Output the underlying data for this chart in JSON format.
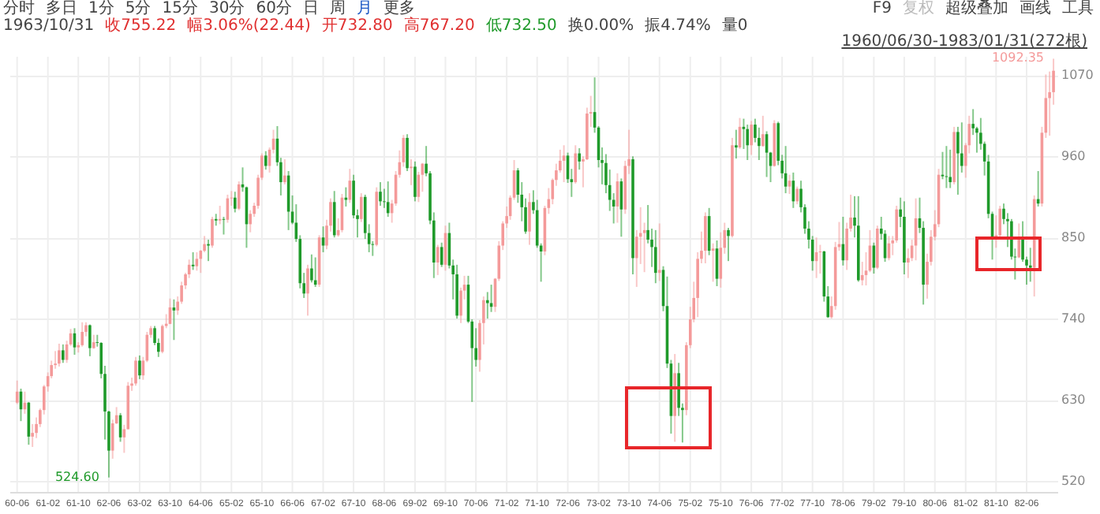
{
  "chart_data": {
    "type": "candlestick",
    "annotations": [
      "分时",
      "多日",
      "1分",
      "5分",
      "15分",
      "30分",
      "60分",
      "日",
      "周",
      "月",
      "更多",
      "F9",
      "复权",
      "超级叠加",
      "画线",
      "工具",
      "1963/10/31",
      "收755.22",
      "幅3.06%(22.44)",
      "开732.80",
      "高767.20",
      "低732.50",
      "换0.00%",
      "振4.74%",
      "量0",
      "1960/06/30-1983/01/31(272根)",
      {
        "text": "524.60",
        "x": "1962-06",
        "y": 524.6
      },
      {
        "text": "1092.35",
        "x": "1983-01",
        "y": 1092.35
      }
    ],
    "x": [
      "1960-06",
      "1960-07",
      "1960-08",
      "1960-09",
      "1960-10",
      "1960-11",
      "1960-12",
      "1961-01",
      "1961-02",
      "1961-03",
      "1961-04",
      "1961-05",
      "1961-06",
      "1961-07",
      "1961-08",
      "1961-09",
      "1961-10",
      "1961-11",
      "1961-12",
      "1962-01",
      "1962-02",
      "1962-03",
      "1962-04",
      "1962-05",
      "1962-06",
      "1962-07",
      "1962-08",
      "1962-09",
      "1962-10",
      "1962-11",
      "1962-12",
      "1963-01",
      "1963-02",
      "1963-03",
      "1963-04",
      "1963-05",
      "1963-06",
      "1963-07",
      "1963-08",
      "1963-09",
      "1963-10",
      "1963-11",
      "1963-12",
      "1964-01",
      "1964-02",
      "1964-03",
      "1964-04",
      "1964-05",
      "1964-06",
      "1964-07",
      "1964-08",
      "1964-09",
      "1964-10",
      "1964-11",
      "1964-12",
      "1965-01",
      "1965-02",
      "1965-03",
      "1965-04",
      "1965-05",
      "1965-06",
      "1965-07",
      "1965-08",
      "1965-09",
      "1965-10",
      "1965-11",
      "1965-12",
      "1966-01",
      "1966-02",
      "1966-03",
      "1966-04",
      "1966-05",
      "1966-06",
      "1966-07",
      "1966-08",
      "1966-09",
      "1966-10",
      "1966-11",
      "1966-12",
      "1967-01",
      "1967-02",
      "1967-03",
      "1967-04",
      "1967-05",
      "1967-06",
      "1967-07",
      "1967-08",
      "1967-09",
      "1967-10",
      "1967-11",
      "1967-12",
      "1968-01",
      "1968-02",
      "1968-03",
      "1968-04",
      "1968-05",
      "1968-06",
      "1968-07",
      "1968-08",
      "1968-09",
      "1968-10",
      "1968-11",
      "1968-12",
      "1969-01",
      "1969-02",
      "1969-03",
      "1969-04",
      "1969-05",
      "1969-06",
      "1969-07",
      "1969-08",
      "1969-09",
      "1969-10",
      "1969-11",
      "1969-12",
      "1970-01",
      "1970-02",
      "1970-03",
      "1970-04",
      "1970-05",
      "1970-06",
      "1970-07",
      "1970-08",
      "1970-09",
      "1970-10",
      "1970-11",
      "1970-12",
      "1971-01",
      "1971-02",
      "1971-03",
      "1971-04",
      "1971-05",
      "1971-06",
      "1971-07",
      "1971-08",
      "1971-09",
      "1971-10",
      "1971-11",
      "1971-12",
      "1972-01",
      "1972-02",
      "1972-03",
      "1972-04",
      "1972-05",
      "1972-06",
      "1972-07",
      "1972-08",
      "1972-09",
      "1972-10",
      "1972-11",
      "1972-12",
      "1973-01",
      "1973-02",
      "1973-03",
      "1973-04",
      "1973-05",
      "1973-06",
      "1973-07",
      "1973-08",
      "1973-09",
      "1973-10",
      "1973-11",
      "1973-12",
      "1974-01",
      "1974-02",
      "1974-03",
      "1974-04",
      "1974-05",
      "1974-06",
      "1974-07",
      "1974-08",
      "1974-09",
      "1974-10",
      "1974-11",
      "1974-12",
      "1975-01",
      "1975-02",
      "1975-03",
      "1975-04",
      "1975-05",
      "1975-06",
      "1975-07",
      "1975-08",
      "1975-09",
      "1975-10",
      "1975-11",
      "1975-12",
      "1976-01",
      "1976-02",
      "1976-03",
      "1976-04",
      "1976-05",
      "1976-06",
      "1976-07",
      "1976-08",
      "1976-09",
      "1976-10",
      "1976-11",
      "1976-12",
      "1977-01",
      "1977-02",
      "1977-03",
      "1977-04",
      "1977-05",
      "1977-06",
      "1977-07",
      "1977-08",
      "1977-09",
      "1977-10",
      "1977-11",
      "1977-12",
      "1978-01",
      "1978-02",
      "1978-03",
      "1978-04",
      "1978-05",
      "1978-06",
      "1978-07",
      "1978-08",
      "1978-09",
      "1978-10",
      "1978-11",
      "1978-12",
      "1979-01",
      "1979-02",
      "1979-03",
      "1979-04",
      "1979-05",
      "1979-06",
      "1979-07",
      "1979-08",
      "1979-09",
      "1979-10",
      "1979-11",
      "1979-12",
      "1980-01",
      "1980-02",
      "1980-03",
      "1980-04",
      "1980-05",
      "1980-06",
      "1980-07",
      "1980-08",
      "1980-09",
      "1980-10",
      "1980-11",
      "1980-12",
      "1981-01",
      "1981-02",
      "1981-03",
      "1981-04",
      "1981-05",
      "1981-06",
      "1981-07",
      "1981-08",
      "1981-09",
      "1981-10",
      "1981-11",
      "1981-12",
      "1982-01",
      "1982-02",
      "1982-03",
      "1982-04",
      "1982-05",
      "1982-06",
      "1982-07",
      "1982-08",
      "1982-09",
      "1982-10",
      "1982-11",
      "1982-12",
      "1983-01"
    ],
    "ohlc": [
      [
        626,
        656,
        624,
        641
      ],
      [
        641,
        645,
        601,
        617
      ],
      [
        617,
        641,
        611,
        626
      ],
      [
        626,
        627,
        569,
        580
      ],
      [
        580,
        597,
        566,
        585
      ],
      [
        585,
        606,
        578,
        597
      ],
      [
        597,
        618,
        593,
        616
      ],
      [
        616,
        650,
        610,
        648
      ],
      [
        648,
        667,
        641,
        662
      ],
      [
        662,
        683,
        659,
        677
      ],
      [
        677,
        696,
        672,
        679
      ],
      [
        679,
        706,
        675,
        697
      ],
      [
        697,
        705,
        680,
        684
      ],
      [
        684,
        710,
        680,
        705
      ],
      [
        705,
        726,
        703,
        720
      ],
      [
        720,
        727,
        691,
        701
      ],
      [
        701,
        708,
        694,
        704
      ],
      [
        704,
        735,
        702,
        722
      ],
      [
        722,
        735,
        716,
        731
      ],
      [
        731,
        732,
        689,
        700
      ],
      [
        700,
        718,
        699,
        708
      ],
      [
        708,
        718,
        702,
        707
      ],
      [
        707,
        708,
        659,
        665
      ],
      [
        665,
        676,
        576,
        614
      ],
      [
        614,
        615,
        524.6,
        561
      ],
      [
        561,
        603,
        550,
        598
      ],
      [
        598,
        620,
        597,
        609
      ],
      [
        609,
        612,
        573,
        579
      ],
      [
        579,
        596,
        558,
        590
      ],
      [
        590,
        654,
        590,
        649
      ],
      [
        649,
        660,
        642,
        652
      ],
      [
        652,
        688,
        649,
        683
      ],
      [
        683,
        690,
        658,
        663
      ],
      [
        663,
        688,
        657,
        683
      ],
      [
        683,
        722,
        681,
        718
      ],
      [
        718,
        730,
        714,
        727
      ],
      [
        727,
        730,
        704,
        707
      ],
      [
        707,
        713,
        688,
        695
      ],
      [
        695,
        732,
        693,
        730
      ],
      [
        730,
        746,
        727,
        733
      ],
      [
        732.8,
        767.2,
        732.5,
        755.22
      ],
      [
        755,
        766,
        711,
        751
      ],
      [
        751,
        770,
        745,
        763
      ],
      [
        763,
        790,
        760,
        785
      ],
      [
        785,
        802,
        780,
        800
      ],
      [
        800,
        820,
        795,
        813
      ],
      [
        813,
        830,
        806,
        811
      ],
      [
        811,
        830,
        805,
        821
      ],
      [
        821,
        833,
        802,
        832
      ],
      [
        832,
        852,
        830,
        841
      ],
      [
        841,
        847,
        818,
        839
      ],
      [
        839,
        878,
        836,
        875
      ],
      [
        875,
        882,
        866,
        873
      ],
      [
        873,
        893,
        868,
        875
      ],
      [
        875,
        878,
        854,
        874
      ],
      [
        874,
        908,
        870,
        903
      ],
      [
        903,
        913,
        893,
        904
      ],
      [
        904,
        912,
        884,
        889
      ],
      [
        889,
        926,
        887,
        922
      ],
      [
        922,
        945,
        912,
        918
      ],
      [
        918,
        919,
        836,
        868
      ],
      [
        868,
        887,
        857,
        882
      ],
      [
        882,
        897,
        878,
        893
      ],
      [
        893,
        935,
        889,
        931
      ],
      [
        931,
        964,
        928,
        961
      ],
      [
        961,
        967,
        942,
        947
      ],
      [
        947,
        972,
        938,
        969
      ],
      [
        969,
        996,
        964,
        984
      ],
      [
        984,
        1001,
        947,
        952
      ],
      [
        952,
        958,
        907,
        925
      ],
      [
        925,
        956,
        922,
        934
      ],
      [
        934,
        940,
        860,
        885
      ],
      [
        885,
        907,
        868,
        870
      ],
      [
        870,
        895,
        844,
        848
      ],
      [
        848,
        853,
        781,
        788
      ],
      [
        788,
        802,
        768,
        774
      ],
      [
        774,
        813,
        744,
        808
      ],
      [
        808,
        827,
        789,
        792
      ],
      [
        792,
        823,
        783,
        786
      ],
      [
        786,
        853,
        783,
        850
      ],
      [
        850,
        865,
        830,
        839
      ],
      [
        839,
        874,
        834,
        866
      ],
      [
        866,
        903,
        858,
        898
      ],
      [
        898,
        913,
        850,
        853
      ],
      [
        853,
        876,
        851,
        860
      ],
      [
        860,
        909,
        857,
        904
      ],
      [
        904,
        918,
        892,
        901
      ],
      [
        901,
        943,
        897,
        927
      ],
      [
        927,
        935,
        876,
        880
      ],
      [
        880,
        888,
        850,
        875
      ],
      [
        875,
        910,
        871,
        905
      ],
      [
        905,
        908,
        848,
        856
      ],
      [
        856,
        868,
        830,
        841
      ],
      [
        841,
        845,
        825,
        840
      ],
      [
        840,
        918,
        838,
        912
      ],
      [
        912,
        925,
        893,
        899
      ],
      [
        899,
        916,
        890,
        898
      ],
      [
        898,
        926,
        878,
        883
      ],
      [
        883,
        901,
        870,
        896
      ],
      [
        896,
        940,
        893,
        935
      ],
      [
        935,
        968,
        931,
        952
      ],
      [
        952,
        989,
        946,
        985
      ],
      [
        985,
        990,
        940,
        944
      ],
      [
        944,
        956,
        921,
        946
      ],
      [
        946,
        953,
        899,
        905
      ],
      [
        905,
        939,
        898,
        935
      ],
      [
        935,
        951,
        912,
        950
      ],
      [
        950,
        974,
        933,
        937
      ],
      [
        937,
        940,
        868,
        873
      ],
      [
        873,
        884,
        795,
        816
      ],
      [
        816,
        840,
        799,
        837
      ],
      [
        837,
        843,
        810,
        813
      ],
      [
        813,
        866,
        805,
        856
      ],
      [
        856,
        870,
        808,
        812
      ],
      [
        812,
        820,
        766,
        800
      ],
      [
        800,
        813,
        740,
        744
      ],
      [
        744,
        782,
        734,
        778
      ],
      [
        778,
        798,
        766,
        786
      ],
      [
        786,
        798,
        734,
        736
      ],
      [
        736,
        739,
        627,
        700
      ],
      [
        700,
        727,
        675,
        684
      ],
      [
        684,
        738,
        668,
        734
      ],
      [
        734,
        770,
        705,
        765
      ],
      [
        765,
        776,
        740,
        761
      ],
      [
        761,
        786,
        749,
        756
      ],
      [
        756,
        795,
        749,
        794
      ],
      [
        794,
        845,
        791,
        839
      ],
      [
        839,
        872,
        833,
        869
      ],
      [
        869,
        892,
        863,
        879
      ],
      [
        879,
        907,
        874,
        904
      ],
      [
        904,
        955,
        901,
        941
      ],
      [
        941,
        944,
        897,
        908
      ],
      [
        908,
        925,
        872,
        891
      ],
      [
        891,
        903,
        855,
        858
      ],
      [
        858,
        910,
        840,
        898
      ],
      [
        898,
        914,
        882,
        887
      ],
      [
        887,
        901,
        836,
        839
      ],
      [
        839,
        842,
        790,
        831
      ],
      [
        831,
        893,
        826,
        890
      ],
      [
        890,
        917,
        882,
        902
      ],
      [
        902,
        930,
        895,
        928
      ],
      [
        928,
        950,
        920,
        941
      ],
      [
        941,
        969,
        938,
        954
      ],
      [
        954,
        975,
        925,
        961
      ],
      [
        961,
        965,
        924,
        929
      ],
      [
        929,
        943,
        905,
        925
      ],
      [
        925,
        975,
        923,
        964
      ],
      [
        964,
        971,
        942,
        953
      ],
      [
        953,
        960,
        918,
        956
      ],
      [
        956,
        1026,
        955,
        1018
      ],
      [
        1018,
        1042,
        1000,
        1020
      ],
      [
        1020,
        1067,
        992,
        999
      ],
      [
        999,
        1001,
        945,
        955
      ],
      [
        955,
        972,
        922,
        951
      ],
      [
        951,
        963,
        910,
        921
      ],
      [
        921,
        942,
        886,
        901
      ],
      [
        901,
        910,
        869,
        892
      ],
      [
        892,
        937,
        870,
        926
      ],
      [
        926,
        930,
        851,
        888
      ],
      [
        888,
        954,
        882,
        947
      ],
      [
        947,
        996,
        936,
        956
      ],
      [
        956,
        960,
        800,
        822
      ],
      [
        822,
        860,
        783,
        851
      ],
      [
        851,
        891,
        814,
        856
      ],
      [
        856,
        870,
        803,
        860
      ],
      [
        860,
        894,
        842,
        847
      ],
      [
        847,
        862,
        810,
        837
      ],
      [
        837,
        860,
        788,
        802
      ],
      [
        802,
        869,
        791,
        806
      ],
      [
        806,
        811,
        750,
        757
      ],
      [
        757,
        797,
        673,
        679
      ],
      [
        679,
        684,
        584,
        608
      ],
      [
        608,
        692,
        573,
        666
      ],
      [
        666,
        680,
        608,
        619
      ],
      [
        619,
        625,
        572,
        616
      ],
      [
        616,
        708,
        609,
        704
      ],
      [
        704,
        756,
        700,
        739
      ],
      [
        739,
        790,
        735,
        768
      ],
      [
        768,
        830,
        742,
        821
      ],
      [
        821,
        858,
        815,
        832
      ],
      [
        832,
        884,
        815,
        879
      ],
      [
        879,
        890,
        826,
        832
      ],
      [
        832,
        842,
        790,
        835
      ],
      [
        835,
        846,
        784,
        794
      ],
      [
        794,
        857,
        782,
        836
      ],
      [
        836,
        870,
        828,
        860
      ],
      [
        860,
        863,
        818,
        852
      ],
      [
        852,
        985,
        850,
        975
      ],
      [
        975,
        996,
        957,
        972
      ],
      [
        972,
        1012,
        970,
        1000
      ],
      [
        1000,
        1011,
        970,
        997
      ],
      [
        997,
        1003,
        955,
        975
      ],
      [
        975,
        1008,
        962,
        1003
      ],
      [
        1003,
        1011,
        979,
        985
      ],
      [
        985,
        999,
        955,
        974
      ],
      [
        974,
        1015,
        973,
        990
      ],
      [
        990,
        994,
        932,
        965
      ],
      [
        965,
        966,
        925,
        947
      ],
      [
        947,
        1009,
        946,
        1005
      ],
      [
        1005,
        1007,
        948,
        954
      ],
      [
        954,
        962,
        930,
        937
      ],
      [
        937,
        974,
        910,
        919
      ],
      [
        919,
        935,
        909,
        927
      ],
      [
        927,
        938,
        890,
        899
      ],
      [
        899,
        919,
        895,
        916
      ],
      [
        916,
        927,
        884,
        891
      ],
      [
        891,
        895,
        855,
        862
      ],
      [
        862,
        872,
        835,
        847
      ],
      [
        847,
        852,
        805,
        818
      ],
      [
        818,
        850,
        795,
        830
      ],
      [
        830,
        840,
        801,
        831
      ],
      [
        831,
        832,
        763,
        770
      ],
      [
        770,
        784,
        741,
        742
      ],
      [
        742,
        770,
        740,
        757
      ],
      [
        757,
        844,
        752,
        837
      ],
      [
        837,
        871,
        832,
        841
      ],
      [
        841,
        878,
        812,
        819
      ],
      [
        819,
        870,
        806,
        862
      ],
      [
        862,
        908,
        858,
        877
      ],
      [
        877,
        906,
        850,
        866
      ],
      [
        866,
        906,
        790,
        792
      ],
      [
        792,
        817,
        785,
        799
      ],
      [
        799,
        830,
        785,
        805
      ],
      [
        805,
        860,
        803,
        839
      ],
      [
        839,
        843,
        801,
        809
      ],
      [
        809,
        866,
        807,
        862
      ],
      [
        862,
        878,
        847,
        855
      ],
      [
        855,
        860,
        817,
        822
      ],
      [
        822,
        852,
        819,
        842
      ],
      [
        842,
        852,
        826,
        846
      ],
      [
        846,
        893,
        843,
        888
      ],
      [
        888,
        904,
        864,
        878
      ],
      [
        878,
        899,
        800,
        816
      ],
      [
        816,
        835,
        795,
        822
      ],
      [
        822,
        847,
        818,
        839
      ],
      [
        839,
        903,
        819,
        876
      ],
      [
        876,
        904,
        856,
        863
      ],
      [
        863,
        872,
        759,
        786
      ],
      [
        786,
        828,
        767,
        817
      ],
      [
        817,
        860,
        812,
        851
      ],
      [
        851,
        887,
        846,
        868
      ],
      [
        868,
        943,
        864,
        935
      ],
      [
        935,
        966,
        929,
        933
      ],
      [
        933,
        974,
        917,
        932
      ],
      [
        932,
        969,
        917,
        925
      ],
      [
        925,
        1000,
        922,
        993
      ],
      [
        993,
        1000,
        908,
        964
      ],
      [
        964,
        1006,
        938,
        947
      ],
      [
        947,
        978,
        931,
        975
      ],
      [
        975,
        1015,
        964,
        1004
      ],
      [
        1004,
        1024,
        989,
        998
      ],
      [
        998,
        1000,
        965,
        992
      ],
      [
        992,
        1012,
        969,
        977
      ],
      [
        977,
        980,
        934,
        953
      ],
      [
        953,
        962,
        876,
        882
      ],
      [
        882,
        885,
        820,
        850
      ],
      [
        850,
        880,
        836,
        853
      ],
      [
        853,
        893,
        847,
        889
      ],
      [
        889,
        896,
        868,
        875
      ],
      [
        875,
        883,
        837,
        872
      ],
      [
        872,
        875,
        820,
        824
      ],
      [
        824,
        835,
        793,
        823
      ],
      [
        823,
        869,
        822,
        848
      ],
      [
        848,
        872,
        817,
        820
      ],
      [
        820,
        824,
        786,
        812
      ],
      [
        812,
        836,
        790,
        809
      ],
      [
        809,
        907,
        770,
        902
      ],
      [
        902,
        940,
        892,
        896
      ],
      [
        896,
        1000,
        892,
        992
      ],
      [
        992,
        1071,
        985,
        1039
      ],
      [
        1039,
        1075,
        988,
        1047
      ],
      [
        1047,
        1092.35,
        1030,
        1076
      ]
    ],
    "colors": [
      "#f49a9a",
      "#1f9a2a",
      "#f49a9a",
      "#1f9a2a",
      "#f49a9a",
      "#f49a9a",
      "#f49a9a",
      "#f49a9a",
      "#f49a9a",
      "#f49a9a",
      "#f49a9a",
      "#f49a9a",
      "#1f9a2a",
      "#f49a9a",
      "#f49a9a",
      "#1f9a2a",
      "#f49a9a",
      "#f49a9a",
      "#f49a9a",
      "#1f9a2a",
      "#f49a9a",
      "#1f9a2a",
      "#1f9a2a",
      "#1f9a2a",
      "#1f9a2a",
      "#f49a9a",
      "#f49a9a",
      "#1f9a2a",
      "#f49a9a",
      "#f49a9a",
      "#f49a9a",
      "#f49a9a",
      "#1f9a2a",
      "#f49a9a",
      "#f49a9a",
      "#f49a9a",
      "#1f9a2a",
      "#1f9a2a",
      "#f49a9a",
      "#f49a9a",
      "#f49a9a",
      "#1f9a2a",
      "#f49a9a",
      "#f49a9a",
      "#f49a9a",
      "#f49a9a",
      "#1f9a2a",
      "#f49a9a",
      "#f49a9a",
      "#f49a9a",
      "#1f9a2a",
      "#f49a9a",
      "#1f9a2a",
      "#f49a9a",
      "#1f9a2a",
      "#f49a9a",
      "#f49a9a",
      "#1f9a2a",
      "#f49a9a",
      "#1f9a2a",
      "#1f9a2a",
      "#f49a9a",
      "#f49a9a",
      "#f49a9a",
      "#f49a9a",
      "#1f9a2a",
      "#f49a9a",
      "#f49a9a",
      "#1f9a2a",
      "#1f9a2a",
      "#f49a9a",
      "#1f9a2a",
      "#1f9a2a",
      "#1f9a2a",
      "#1f9a2a",
      "#1f9a2a",
      "#f49a9a",
      "#1f9a2a",
      "#1f9a2a",
      "#f49a9a",
      "#1f9a2a",
      "#f49a9a",
      "#f49a9a",
      "#1f9a2a",
      "#f49a9a",
      "#f49a9a",
      "#1f9a2a",
      "#f49a9a",
      "#1f9a2a",
      "#1f9a2a",
      "#f49a9a",
      "#1f9a2a",
      "#1f9a2a",
      "#1f9a2a",
      "#f49a9a",
      "#1f9a2a",
      "#1f9a2a",
      "#1f9a2a",
      "#f49a9a",
      "#f49a9a",
      "#f49a9a",
      "#f49a9a",
      "#1f9a2a",
      "#f49a9a",
      "#1f9a2a",
      "#f49a9a",
      "#f49a9a",
      "#1f9a2a",
      "#1f9a2a",
      "#1f9a2a",
      "#f49a9a",
      "#1f9a2a",
      "#f49a9a",
      "#1f9a2a",
      "#1f9a2a",
      "#1f9a2a",
      "#f49a9a",
      "#f49a9a",
      "#1f9a2a",
      "#1f9a2a",
      "#1f9a2a",
      "#f49a9a",
      "#f49a9a",
      "#1f9a2a",
      "#1f9a2a",
      "#f49a9a",
      "#f49a9a",
      "#f49a9a",
      "#f49a9a",
      "#f49a9a",
      "#f49a9a",
      "#1f9a2a",
      "#1f9a2a",
      "#1f9a2a",
      "#f49a9a",
      "#1f9a2a",
      "#1f9a2a",
      "#1f9a2a",
      "#f49a9a",
      "#f49a9a",
      "#f49a9a",
      "#f49a9a",
      "#f49a9a",
      "#f49a9a",
      "#1f9a2a",
      "#1f9a2a",
      "#f49a9a",
      "#1f9a2a",
      "#f49a9a",
      "#f49a9a",
      "#f49a9a",
      "#1f9a2a",
      "#1f9a2a",
      "#1f9a2a",
      "#1f9a2a",
      "#1f9a2a",
      "#1f9a2a",
      "#f49a9a",
      "#1f9a2a",
      "#f49a9a",
      "#f49a9a",
      "#1f9a2a",
      "#f49a9a",
      "#f49a9a",
      "#f49a9a",
      "#1f9a2a",
      "#1f9a2a",
      "#1f9a2a",
      "#f49a9a",
      "#1f9a2a",
      "#1f9a2a",
      "#1f9a2a",
      "#f49a9a",
      "#1f9a2a",
      "#1f9a2a",
      "#f49a9a",
      "#f49a9a",
      "#f49a9a",
      "#f49a9a",
      "#f49a9a",
      "#f49a9a",
      "#1f9a2a",
      "#f49a9a",
      "#1f9a2a",
      "#f49a9a",
      "#f49a9a",
      "#1f9a2a",
      "#f49a9a",
      "#1f9a2a",
      "#f49a9a",
      "#1f9a2a",
      "#1f9a2a",
      "#f49a9a",
      "#1f9a2a",
      "#1f9a2a",
      "#f49a9a",
      "#1f9a2a",
      "#1f9a2a",
      "#f49a9a",
      "#1f9a2a",
      "#1f9a2a",
      "#1f9a2a",
      "#f49a9a",
      "#1f9a2a",
      "#f49a9a",
      "#1f9a2a",
      "#1f9a2a",
      "#1f9a2a",
      "#1f9a2a",
      "#f49a9a",
      "#f49a9a",
      "#1f9a2a",
      "#1f9a2a",
      "#f49a9a",
      "#f49a9a",
      "#f49a9a",
      "#1f9a2a",
      "#f49a9a",
      "#f49a9a",
      "#1f9a2a",
      "#1f9a2a",
      "#f49a9a",
      "#f49a9a",
      "#f49a9a",
      "#1f9a2a",
      "#f49a9a",
      "#1f9a2a",
      "#1f9a2a",
      "#f49a9a",
      "#f49a9a",
      "#f49a9a",
      "#1f9a2a",
      "#1f9a2a",
      "#f49a9a",
      "#f49a9a",
      "#f49a9a",
      "#1f9a2a",
      "#1f9a2a",
      "#f49a9a",
      "#f49a9a",
      "#f49a9a",
      "#f49a9a",
      "#1f9a2a",
      "#1f9a2a",
      "#1f9a2a",
      "#f49a9a",
      "#1f9a2a",
      "#1f9a2a",
      "#f49a9a",
      "#f49a9a",
      "#1f9a2a",
      "#1f9a2a",
      "#1f9a2a",
      "#1f9a2a",
      "#1f9a2a",
      "#1f9a2a",
      "#f49a9a",
      "#f49a9a",
      "#1f9a2a",
      "#1f9a2a",
      "#1f9a2a",
      "#1f9a2a",
      "#f49a9a",
      "#1f9a2a",
      "#1f9a2a",
      "#1f9a2a",
      "#f49a9a",
      "#1f9a2a",
      "#f49a9a",
      "#f49a9a",
      "#f49a9a",
      "#f49a9a"
    ],
    "xlim": [
      "1960-04",
      "1983-02"
    ],
    "xticks": [
      {
        "value": "1960-06",
        "label": "60-06"
      },
      {
        "value": "1961-02",
        "label": "61-02"
      },
      {
        "value": "1961-10",
        "label": "61-10"
      },
      {
        "value": "1962-06",
        "label": "62-06"
      },
      {
        "value": "1963-02",
        "label": "63-02"
      },
      {
        "value": "1963-10",
        "label": "63-10"
      },
      {
        "value": "1964-06",
        "label": "64-06"
      },
      {
        "value": "1965-02",
        "label": "65-02"
      },
      {
        "value": "1965-10",
        "label": "65-10"
      },
      {
        "value": "1966-06",
        "label": "66-06"
      },
      {
        "value": "1967-02",
        "label": "67-02"
      },
      {
        "value": "1967-10",
        "label": "67-10"
      },
      {
        "value": "1968-06",
        "label": "68-06"
      },
      {
        "value": "1969-02",
        "label": "69-02"
      },
      {
        "value": "1969-10",
        "label": "69-10"
      },
      {
        "value": "1970-06",
        "label": "70-06"
      },
      {
        "value": "1971-02",
        "label": "71-02"
      },
      {
        "value": "1971-10",
        "label": "71-10"
      },
      {
        "value": "1972-06",
        "label": "72-06"
      },
      {
        "value": "1973-02",
        "label": "73-02"
      },
      {
        "value": "1973-10",
        "label": "73-10"
      },
      {
        "value": "1974-06",
        "label": "74-06"
      },
      {
        "value": "1975-02",
        "label": "75-02"
      },
      {
        "value": "1975-10",
        "label": "75-10"
      },
      {
        "value": "1976-06",
        "label": "76-06"
      },
      {
        "value": "1977-02",
        "label": "77-02"
      },
      {
        "value": "1977-10",
        "label": "77-10"
      },
      {
        "value": "1978-06",
        "label": "78-06"
      },
      {
        "value": "1979-02",
        "label": "79-02"
      },
      {
        "value": "1979-10",
        "label": "79-10"
      },
      {
        "value": "1980-06",
        "label": "80-06"
      },
      {
        "value": "1981-02",
        "label": "81-02"
      },
      {
        "value": "1981-10",
        "label": "81-10"
      },
      {
        "value": "1982-06",
        "label": "82-06"
      }
    ],
    "ylim": [
      505,
      1095
    ],
    "yticks": [
      520,
      630,
      740,
      850,
      960,
      1070
    ],
    "grid": true
  }
}
